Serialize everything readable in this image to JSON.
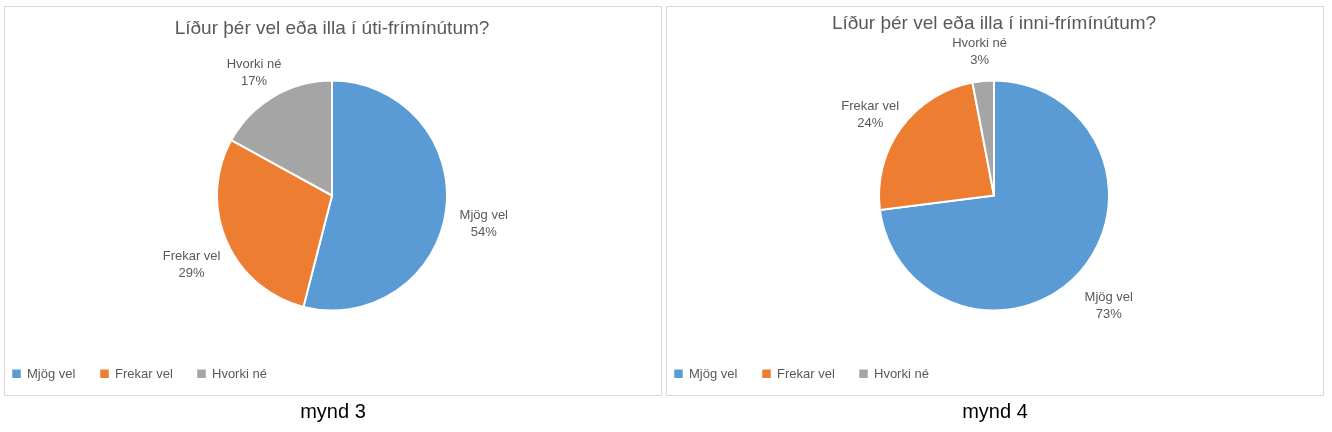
{
  "chart_data": [
    {
      "type": "pie",
      "title": "Líður þér vel eða illa í úti-frímínútum?",
      "categories": [
        "Mjög vel",
        "Frekar vel",
        "Hvorki né"
      ],
      "values": [
        54,
        29,
        17
      ],
      "value_labels": [
        "54%",
        "29%",
        "17%"
      ],
      "colors": [
        "#5b9bd5",
        "#ed7d31",
        "#a5a5a5"
      ],
      "legend": "bottom",
      "annotations": [
        "mynd 3"
      ]
    },
    {
      "type": "pie",
      "title": "Líður þér vel eða illa í inni-frímínútum?",
      "categories": [
        "Mjög vel",
        "Frekar vel",
        "Hvorki né"
      ],
      "values": [
        73,
        24,
        3
      ],
      "value_labels": [
        "73%",
        "24%",
        "3%"
      ],
      "colors": [
        "#5b9bd5",
        "#ed7d31",
        "#a5a5a5"
      ],
      "legend": "bottom",
      "annotations": [
        "mynd 4"
      ]
    }
  ]
}
